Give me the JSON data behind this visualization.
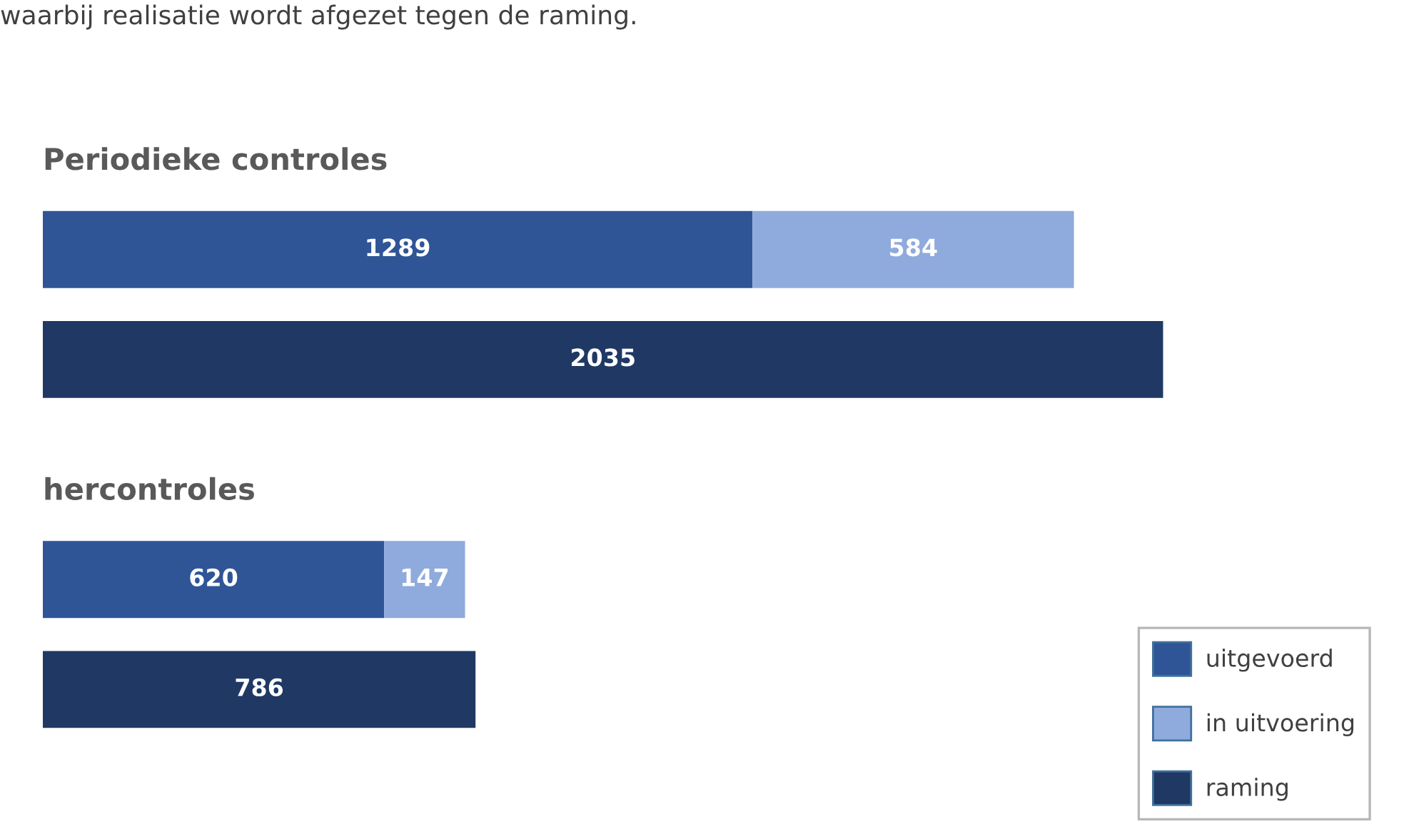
{
  "chart_data": {
    "type": "bar",
    "orientation": "horizontal",
    "stacked": true,
    "data_labels": true,
    "legend": "bottom right",
    "title": "waarbij realisatie wordt afgezet tegen de raming.",
    "categories": [
      "Periodieke controles",
      null,
      "hercontroles",
      null
    ],
    "series": [
      {
        "name": "uitgevoerd",
        "color": "#2f5597",
        "values": [
          1289,
          null,
          620,
          null
        ]
      },
      {
        "name": "in uitvoering",
        "color": "#8faadc",
        "values": [
          584,
          null,
          147,
          null
        ]
      },
      {
        "name": "raming",
        "color": "#203864",
        "values": [
          null,
          2035,
          null,
          786
        ]
      }
    ]
  }
}
